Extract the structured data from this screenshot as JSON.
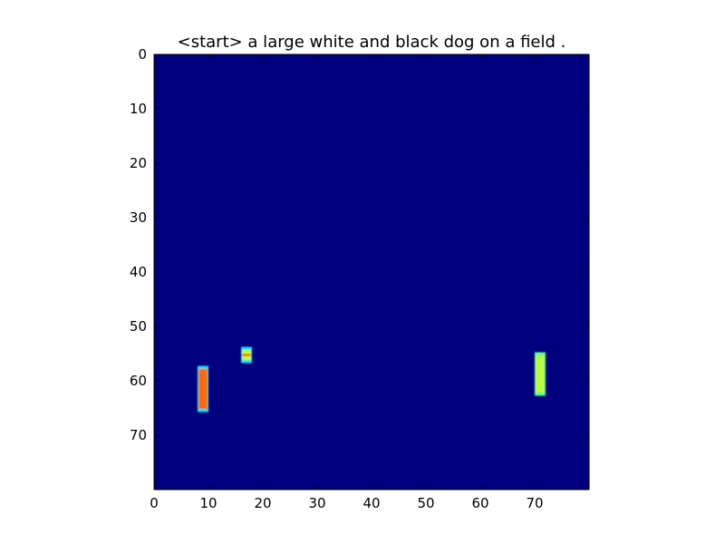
{
  "chart_data": {
    "type": "heatmap",
    "title": "<start> a large white and black dog on a field .",
    "xlabel": "",
    "ylabel": "",
    "xlim": [
      0,
      80
    ],
    "ylim": [
      80,
      0
    ],
    "x_ticks": [
      0,
      10,
      20,
      30,
      40,
      50,
      60,
      70
    ],
    "y_ticks": [
      0,
      10,
      20,
      30,
      40,
      50,
      60,
      70
    ],
    "grid": false,
    "legend": "none",
    "colormap": "jet",
    "background_value": 0,
    "background_color": "#00007f",
    "highlighted_regions": [
      {
        "x": 9,
        "y_start": 57.5,
        "y_end": 65.5,
        "color": "#ff6a00",
        "edge_color": "#00e5ff"
      },
      {
        "x": 17,
        "y_start": 54,
        "y_end": 56.5,
        "color": "#c5ff2f",
        "edge_color": "#00e5ff",
        "inner_color": "#ff2a00"
      },
      {
        "x": 71,
        "y_start": 55,
        "y_end": 62.5,
        "color": "#b7ff40",
        "edge_color": "#58ff98"
      }
    ]
  }
}
